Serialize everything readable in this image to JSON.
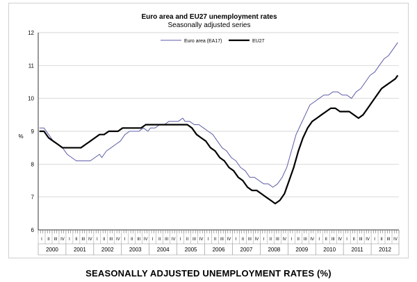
{
  "chart_data": {
    "type": "line",
    "title": "Euro area and EU27 unemployment rates",
    "subtitle": "Seasonally adjusted series",
    "ylabel": "%",
    "ylim": [
      6,
      12
    ],
    "yticks": [
      6,
      7,
      8,
      9,
      10,
      11,
      12
    ],
    "quarter_labels": [
      "I",
      "II",
      "III",
      "IV"
    ],
    "years": [
      "2000",
      "2001",
      "2002",
      "2003",
      "2004",
      "2005",
      "2006",
      "2007",
      "2008",
      "2009",
      "2010",
      "2011",
      "2012"
    ],
    "x_start_month": "2000-01",
    "months": 156,
    "legend": {
      "position": "top-right"
    },
    "series": [
      {
        "name": "Euro area (EA17)",
        "color": "#5b5ba8",
        "values": [
          [
            0,
            9.1
          ],
          [
            2,
            9.1
          ],
          [
            4,
            8.9
          ],
          [
            6,
            8.7
          ],
          [
            8,
            8.6
          ],
          [
            10,
            8.5
          ],
          [
            12,
            8.3
          ],
          [
            14,
            8.2
          ],
          [
            16,
            8.1
          ],
          [
            18,
            8.1
          ],
          [
            20,
            8.1
          ],
          [
            22,
            8.1
          ],
          [
            24,
            8.2
          ],
          [
            26,
            8.3
          ],
          [
            27,
            8.2
          ],
          [
            29,
            8.4
          ],
          [
            31,
            8.5
          ],
          [
            33,
            8.6
          ],
          [
            35,
            8.7
          ],
          [
            37,
            8.9
          ],
          [
            39,
            9.0
          ],
          [
            41,
            9.0
          ],
          [
            43,
            9.0
          ],
          [
            45,
            9.1
          ],
          [
            47,
            9.0
          ],
          [
            48,
            9.1
          ],
          [
            50,
            9.1
          ],
          [
            52,
            9.2
          ],
          [
            54,
            9.2
          ],
          [
            56,
            9.3
          ],
          [
            58,
            9.3
          ],
          [
            60,
            9.3
          ],
          [
            62,
            9.4
          ],
          [
            63,
            9.3
          ],
          [
            65,
            9.3
          ],
          [
            67,
            9.2
          ],
          [
            69,
            9.2
          ],
          [
            71,
            9.1
          ],
          [
            73,
            9.0
          ],
          [
            75,
            8.9
          ],
          [
            77,
            8.7
          ],
          [
            79,
            8.5
          ],
          [
            81,
            8.4
          ],
          [
            83,
            8.2
          ],
          [
            85,
            8.1
          ],
          [
            87,
            7.9
          ],
          [
            89,
            7.8
          ],
          [
            91,
            7.6
          ],
          [
            93,
            7.6
          ],
          [
            95,
            7.5
          ],
          [
            97,
            7.4
          ],
          [
            99,
            7.4
          ],
          [
            101,
            7.3
          ],
          [
            103,
            7.4
          ],
          [
            105,
            7.6
          ],
          [
            107,
            7.9
          ],
          [
            109,
            8.4
          ],
          [
            111,
            8.9
          ],
          [
            113,
            9.2
          ],
          [
            115,
            9.5
          ],
          [
            117,
            9.8
          ],
          [
            119,
            9.9
          ],
          [
            121,
            10.0
          ],
          [
            123,
            10.1
          ],
          [
            125,
            10.1
          ],
          [
            127,
            10.2
          ],
          [
            129,
            10.2
          ],
          [
            131,
            10.1
          ],
          [
            133,
            10.1
          ],
          [
            135,
            10.0
          ],
          [
            137,
            10.2
          ],
          [
            139,
            10.3
          ],
          [
            141,
            10.5
          ],
          [
            143,
            10.7
          ],
          [
            145,
            10.8
          ],
          [
            147,
            11.0
          ],
          [
            149,
            11.2
          ],
          [
            151,
            11.3
          ],
          [
            153,
            11.5
          ],
          [
            155,
            11.7
          ]
        ]
      },
      {
        "name": "EU27",
        "color": "#000000",
        "values": [
          [
            0,
            9.0
          ],
          [
            2,
            9.0
          ],
          [
            4,
            8.8
          ],
          [
            6,
            8.7
          ],
          [
            8,
            8.6
          ],
          [
            10,
            8.5
          ],
          [
            12,
            8.5
          ],
          [
            14,
            8.5
          ],
          [
            16,
            8.5
          ],
          [
            18,
            8.5
          ],
          [
            20,
            8.6
          ],
          [
            22,
            8.7
          ],
          [
            24,
            8.8
          ],
          [
            26,
            8.9
          ],
          [
            28,
            8.9
          ],
          [
            30,
            9.0
          ],
          [
            32,
            9.0
          ],
          [
            34,
            9.0
          ],
          [
            36,
            9.1
          ],
          [
            38,
            9.1
          ],
          [
            40,
            9.1
          ],
          [
            42,
            9.1
          ],
          [
            44,
            9.1
          ],
          [
            46,
            9.2
          ],
          [
            48,
            9.2
          ],
          [
            50,
            9.2
          ],
          [
            52,
            9.2
          ],
          [
            54,
            9.2
          ],
          [
            56,
            9.2
          ],
          [
            58,
            9.2
          ],
          [
            60,
            9.2
          ],
          [
            62,
            9.2
          ],
          [
            64,
            9.2
          ],
          [
            66,
            9.1
          ],
          [
            68,
            8.9
          ],
          [
            70,
            8.8
          ],
          [
            72,
            8.7
          ],
          [
            74,
            8.5
          ],
          [
            76,
            8.4
          ],
          [
            78,
            8.2
          ],
          [
            80,
            8.1
          ],
          [
            82,
            7.9
          ],
          [
            84,
            7.8
          ],
          [
            86,
            7.6
          ],
          [
            88,
            7.5
          ],
          [
            90,
            7.3
          ],
          [
            92,
            7.2
          ],
          [
            94,
            7.2
          ],
          [
            96,
            7.1
          ],
          [
            98,
            7.0
          ],
          [
            100,
            6.9
          ],
          [
            102,
            6.8
          ],
          [
            104,
            6.9
          ],
          [
            106,
            7.1
          ],
          [
            108,
            7.5
          ],
          [
            110,
            7.9
          ],
          [
            112,
            8.4
          ],
          [
            114,
            8.8
          ],
          [
            116,
            9.1
          ],
          [
            118,
            9.3
          ],
          [
            120,
            9.4
          ],
          [
            122,
            9.5
          ],
          [
            124,
            9.6
          ],
          [
            126,
            9.7
          ],
          [
            128,
            9.7
          ],
          [
            130,
            9.6
          ],
          [
            132,
            9.6
          ],
          [
            134,
            9.6
          ],
          [
            136,
            9.5
          ],
          [
            138,
            9.4
          ],
          [
            140,
            9.5
          ],
          [
            142,
            9.7
          ],
          [
            144,
            9.9
          ],
          [
            146,
            10.1
          ],
          [
            148,
            10.3
          ],
          [
            150,
            10.4
          ],
          [
            152,
            10.5
          ],
          [
            154,
            10.6
          ],
          [
            155,
            10.7
          ]
        ]
      }
    ]
  },
  "caption": "SEASONALLY ADJUSTED UNEMPLOYMENT RATES (%)"
}
